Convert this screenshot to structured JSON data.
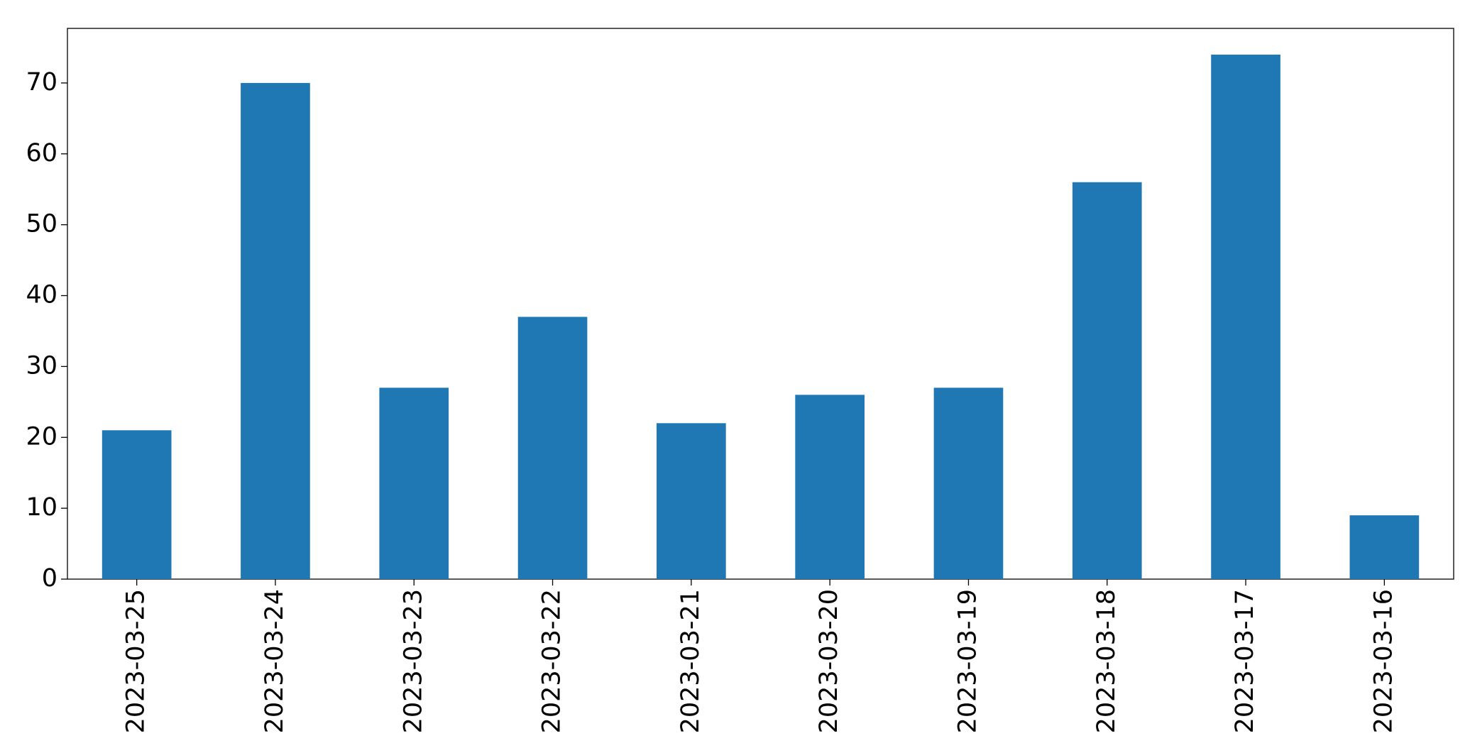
{
  "chart_data": {
    "type": "bar",
    "categories": [
      "2023-03-25",
      "2023-03-24",
      "2023-03-23",
      "2023-03-22",
      "2023-03-21",
      "2023-03-20",
      "2023-03-19",
      "2023-03-18",
      "2023-03-17",
      "2023-03-16"
    ],
    "values": [
      21,
      70,
      27,
      37,
      22,
      26,
      27,
      56,
      74,
      9
    ],
    "color": "#1f77b4",
    "ylim": [
      0,
      77.7
    ],
    "yticks": [
      0,
      10,
      20,
      30,
      40,
      50,
      60,
      70
    ],
    "grid": false
  }
}
